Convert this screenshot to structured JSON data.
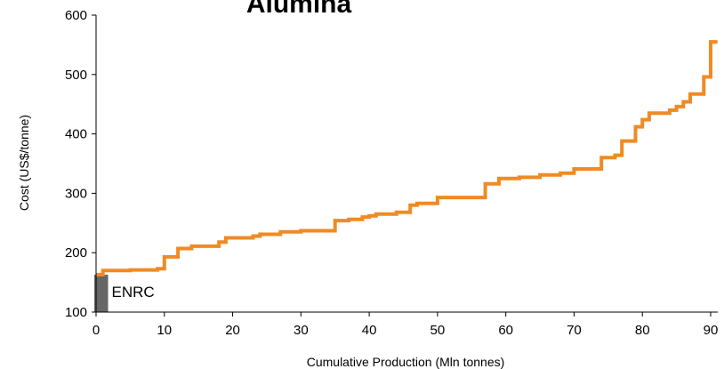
{
  "chart_data": {
    "type": "line",
    "title": "Alumina",
    "xlabel": "Cumulative Production (Mln tonnes)",
    "ylabel": "Cost (US$/tonne)",
    "xlim": [
      0,
      90
    ],
    "ylim": [
      100,
      600
    ],
    "x_ticks": [
      "0",
      "10",
      "20",
      "30",
      "40",
      "50",
      "60",
      "70",
      "80",
      "90"
    ],
    "y_ticks": [
      "100",
      "200",
      "300",
      "400",
      "500",
      "600"
    ],
    "grid": false,
    "colors": {
      "curve": "#f08a24",
      "highlight_bar": "#666666",
      "axis": "#000000"
    },
    "series": [
      {
        "values": [
          [
            0,
            163
          ],
          [
            1,
            170
          ],
          [
            5,
            171
          ],
          [
            9,
            173
          ],
          [
            10,
            193
          ],
          [
            12,
            207
          ],
          [
            14,
            211
          ],
          [
            18,
            218
          ],
          [
            19,
            225
          ],
          [
            23,
            228
          ],
          [
            24,
            231
          ],
          [
            27,
            235
          ],
          [
            30,
            237
          ],
          [
            35,
            254
          ],
          [
            37,
            256
          ],
          [
            39,
            260
          ],
          [
            40,
            262
          ],
          [
            41,
            265
          ],
          [
            44,
            268
          ],
          [
            46,
            280
          ],
          [
            47,
            283
          ],
          [
            50,
            293
          ],
          [
            57,
            316
          ],
          [
            59,
            325
          ],
          [
            62,
            327
          ],
          [
            65,
            331
          ],
          [
            68,
            334
          ],
          [
            70,
            341
          ],
          [
            74,
            360
          ],
          [
            76,
            364
          ],
          [
            77,
            388
          ],
          [
            79,
            412
          ],
          [
            80,
            424
          ],
          [
            81,
            435
          ],
          [
            84,
            440
          ],
          [
            85,
            446
          ],
          [
            86,
            454
          ],
          [
            87,
            467
          ],
          [
            89,
            496
          ],
          [
            90,
            555
          ],
          [
            91,
            555
          ]
        ]
      }
    ],
    "highlight": {
      "label": "ENRC",
      "x_start": 0,
      "x_end": 1.5,
      "value": 163
    }
  }
}
